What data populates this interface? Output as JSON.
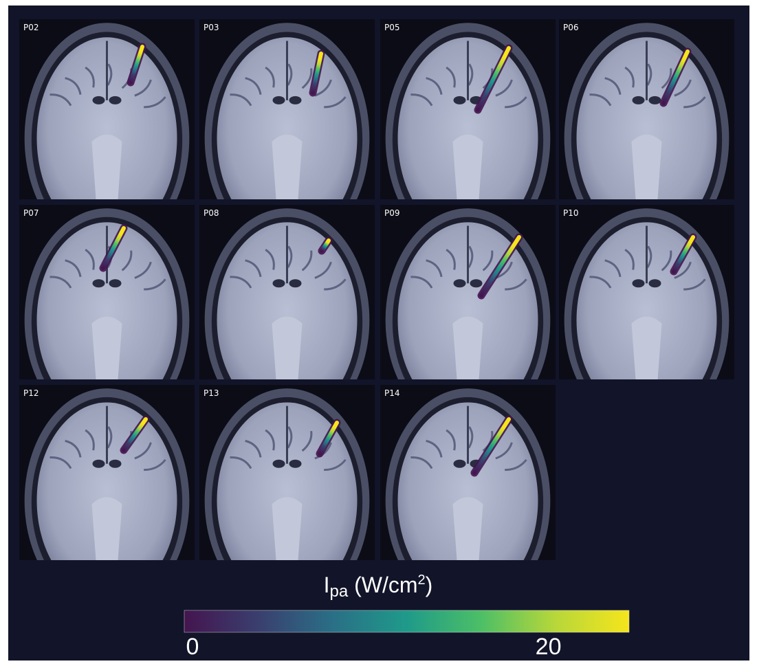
{
  "panels": [
    "P02",
    "P03",
    "P05",
    "P06",
    "P07",
    "P08",
    "P09",
    "P10",
    "P12",
    "P13",
    "P14"
  ],
  "colorbar": {
    "title_parts": [
      "I",
      "pa",
      " (W/cm",
      "2",
      ")"
    ],
    "lim": [
      0,
      25
    ],
    "ticks": [
      0,
      20
    ],
    "colors": [
      "#44154f",
      "#3a3f6e",
      "#2a6f86",
      "#1f9a8a",
      "#4cbf66",
      "#b7d73a",
      "#f5e51c"
    ]
  }
}
